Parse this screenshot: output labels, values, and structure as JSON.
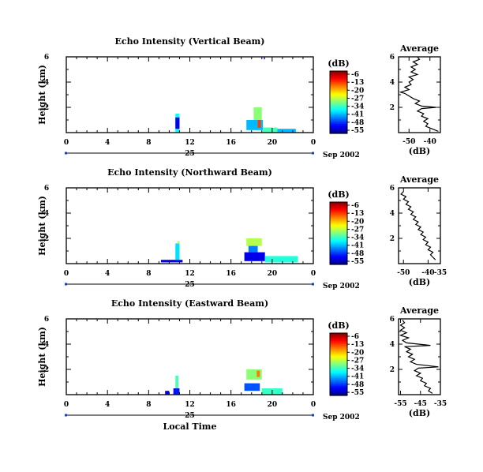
{
  "chart_data": [
    {
      "type": "heatmap",
      "title": "Echo Intensity (Vertical Beam)",
      "ylabel": "Height (km)",
      "ylim": [
        0,
        6
      ],
      "yticks": [
        "2",
        "4",
        "6"
      ],
      "xlim": [
        0,
        24
      ],
      "xticks": [
        "0",
        "4",
        "8",
        "12",
        "16",
        "20",
        "0"
      ],
      "date_day": "25",
      "date_label": "Sep 2002",
      "colorbar": {
        "unit": "(dB)",
        "ticks": [
          "-6",
          "-13",
          "-20",
          "-27",
          "-34",
          "-41",
          "-48",
          "-55"
        ]
      },
      "echo_cells": [
        {
          "t0": 10.6,
          "t1": 11.0,
          "h0": 0.0,
          "h1": 1.5,
          "db": -36
        },
        {
          "t0": 10.6,
          "t1": 11.0,
          "h0": 0.3,
          "h1": 1.2,
          "db": -50
        },
        {
          "t0": 17.5,
          "t1": 19.1,
          "h0": 0.2,
          "h1": 1.0,
          "db": -40
        },
        {
          "t0": 18.2,
          "t1": 19.0,
          "h0": 1.0,
          "h1": 2.0,
          "db": -30
        },
        {
          "t0": 18.6,
          "t1": 18.9,
          "h0": 0.4,
          "h1": 1.0,
          "db": -15
        },
        {
          "t0": 19.1,
          "t1": 20.5,
          "h0": 0.0,
          "h1": 0.4,
          "db": -33
        },
        {
          "t0": 20.5,
          "t1": 22.3,
          "h0": 0.0,
          "h1": 0.3,
          "db": -40
        },
        {
          "t0": 19.2,
          "t1": 19.3,
          "h0": 5.8,
          "h1": 6.0,
          "db": -50
        }
      ],
      "average": {
        "title": "Average",
        "xlabel": "(dB)",
        "xlim": [
          -55,
          -35
        ],
        "xticks": [
          {
            "v": -50,
            "label": "-50"
          },
          {
            "v": -40,
            "label": "-40"
          }
        ],
        "ylim": [
          0,
          6
        ],
        "yticks": [
          "2",
          "4",
          "6"
        ],
        "points": [
          [
            -36,
            0.1
          ],
          [
            -39,
            0.3
          ],
          [
            -42,
            0.5
          ],
          [
            -41,
            0.7
          ],
          [
            -43,
            0.9
          ],
          [
            -41,
            1.1
          ],
          [
            -44,
            1.3
          ],
          [
            -43,
            1.5
          ],
          [
            -46,
            1.7
          ],
          [
            -44,
            1.9
          ],
          [
            -37,
            2.0
          ],
          [
            -44,
            2.1
          ],
          [
            -47,
            2.3
          ],
          [
            -45,
            2.5
          ],
          [
            -48,
            2.7
          ],
          [
            -50,
            2.9
          ],
          [
            -52,
            3.1
          ],
          [
            -54,
            3.2
          ],
          [
            -50,
            3.4
          ],
          [
            -52,
            3.6
          ],
          [
            -49,
            3.8
          ],
          [
            -50,
            4.0
          ],
          [
            -48,
            4.2
          ],
          [
            -50,
            4.4
          ],
          [
            -46,
            4.6
          ],
          [
            -49,
            4.8
          ],
          [
            -47,
            5.0
          ],
          [
            -49,
            5.2
          ],
          [
            -46,
            5.4
          ],
          [
            -48,
            5.6
          ],
          [
            -45,
            5.8
          ],
          [
            -46,
            6.0
          ]
        ]
      }
    },
    {
      "type": "heatmap",
      "title": "Echo Intensity (Northward Beam)",
      "ylabel": "Height (km)",
      "ylim": [
        0,
        6
      ],
      "yticks": [
        "2",
        "4",
        "6"
      ],
      "xlim": [
        0,
        24
      ],
      "xticks": [
        "0",
        "4",
        "8",
        "12",
        "16",
        "20",
        "0"
      ],
      "date_day": "25",
      "date_label": "Sep 2002",
      "colorbar": {
        "unit": "(dB)",
        "ticks": [
          "-6",
          "-13",
          "-20",
          "-27",
          "-34",
          "-41",
          "-48",
          "-55"
        ]
      },
      "echo_cells": [
        {
          "t0": 9.2,
          "t1": 11.3,
          "h0": 0.1,
          "h1": 0.3,
          "db": -50
        },
        {
          "t0": 10.6,
          "t1": 11.0,
          "h0": 0.3,
          "h1": 1.6,
          "db": -38
        },
        {
          "t0": 10.8,
          "t1": 11.0,
          "h0": 1.6,
          "h1": 1.8,
          "db": -27
        },
        {
          "t0": 17.5,
          "t1": 19.0,
          "h0": 1.4,
          "h1": 2.0,
          "db": -28
        },
        {
          "t0": 17.7,
          "t1": 18.6,
          "h0": 0.9,
          "h1": 1.4,
          "db": -43
        },
        {
          "t0": 17.3,
          "t1": 19.3,
          "h0": 0.2,
          "h1": 0.9,
          "db": -50
        },
        {
          "t0": 19.3,
          "t1": 22.5,
          "h0": 0.1,
          "h1": 0.6,
          "db": -35
        }
      ],
      "average": {
        "title": "Average",
        "xlabel": "(dB)",
        "xlim": [
          -52,
          -35
        ],
        "xticks": [
          {
            "v": -50,
            "label": "-50"
          },
          {
            "v": -40,
            "label": "-40"
          },
          {
            "v": -35,
            "label": "-35"
          }
        ],
        "ylim": [
          0,
          6
        ],
        "yticks": [
          "2",
          "4",
          "6"
        ],
        "points": [
          [
            -37,
            0.3
          ],
          [
            -38,
            0.5
          ],
          [
            -39,
            0.7
          ],
          [
            -38,
            0.9
          ],
          [
            -40,
            1.1
          ],
          [
            -39,
            1.3
          ],
          [
            -41,
            1.5
          ],
          [
            -40,
            1.7
          ],
          [
            -42,
            1.9
          ],
          [
            -41,
            2.1
          ],
          [
            -43,
            2.3
          ],
          [
            -42,
            2.5
          ],
          [
            -44,
            2.7
          ],
          [
            -43,
            2.9
          ],
          [
            -45,
            3.1
          ],
          [
            -44,
            3.3
          ],
          [
            -46,
            3.5
          ],
          [
            -45,
            3.7
          ],
          [
            -47,
            3.9
          ],
          [
            -46,
            4.1
          ],
          [
            -48,
            4.3
          ],
          [
            -47,
            4.5
          ],
          [
            -49,
            4.7
          ],
          [
            -48,
            4.9
          ],
          [
            -50,
            5.1
          ],
          [
            -49,
            5.3
          ],
          [
            -51,
            5.5
          ],
          [
            -50,
            5.7
          ]
        ]
      }
    },
    {
      "type": "heatmap",
      "title": "Echo Intensity (Eastward Beam)",
      "ylabel": "Height (km)",
      "ylim": [
        0,
        6
      ],
      "yticks": [
        "2",
        "4",
        "6"
      ],
      "xlim": [
        0,
        24
      ],
      "xticks": [
        "0",
        "4",
        "8",
        "12",
        "16",
        "20",
        "0"
      ],
      "date_day": "25",
      "date_label": "Sep 2002",
      "xlabel": "Local Time",
      "colorbar": {
        "unit": "(dB)",
        "ticks": [
          "-6",
          "-13",
          "-20",
          "-27",
          "-34",
          "-41",
          "-48",
          "-55"
        ]
      },
      "echo_cells": [
        {
          "t0": 9.6,
          "t1": 10.0,
          "h0": 0.0,
          "h1": 0.3,
          "db": -50
        },
        {
          "t0": 10.4,
          "t1": 11.0,
          "h0": 0.0,
          "h1": 0.5,
          "db": -48
        },
        {
          "t0": 10.6,
          "t1": 10.9,
          "h0": 0.5,
          "h1": 1.5,
          "db": -33
        },
        {
          "t0": 17.5,
          "t1": 19.0,
          "h0": 1.2,
          "h1": 2.0,
          "db": -30
        },
        {
          "t0": 18.5,
          "t1": 18.8,
          "h0": 1.4,
          "h1": 1.9,
          "db": -18
        },
        {
          "t0": 17.3,
          "t1": 18.8,
          "h0": 0.3,
          "h1": 0.9,
          "db": -45
        },
        {
          "t0": 19.0,
          "t1": 21.0,
          "h0": 0.0,
          "h1": 0.5,
          "db": -34
        }
      ],
      "average": {
        "title": "Average",
        "xlabel": "(dB)",
        "xlim": [
          -56,
          -35
        ],
        "xticks": [
          {
            "v": -55,
            "label": "-55"
          },
          {
            "v": -45,
            "label": "-45"
          },
          {
            "v": -35,
            "label": "-35"
          }
        ],
        "ylim": [
          0,
          6
        ],
        "yticks": [
          "2",
          "4",
          "6"
        ],
        "points": [
          [
            -39,
            0.1
          ],
          [
            -41,
            0.3
          ],
          [
            -40,
            0.5
          ],
          [
            -43,
            0.7
          ],
          [
            -42,
            0.9
          ],
          [
            -45,
            1.1
          ],
          [
            -44,
            1.3
          ],
          [
            -47,
            1.5
          ],
          [
            -45,
            1.7
          ],
          [
            -48,
            1.9
          ],
          [
            -46,
            2.1
          ],
          [
            -36,
            2.2
          ],
          [
            -47,
            2.4
          ],
          [
            -50,
            2.6
          ],
          [
            -48,
            2.8
          ],
          [
            -51,
            3.0
          ],
          [
            -49,
            3.2
          ],
          [
            -52,
            3.4
          ],
          [
            -50,
            3.6
          ],
          [
            -53,
            3.8
          ],
          [
            -40,
            3.9
          ],
          [
            -52,
            4.1
          ],
          [
            -54,
            4.3
          ],
          [
            -51,
            4.5
          ],
          [
            -55,
            4.7
          ],
          [
            -52,
            4.9
          ],
          [
            -55,
            5.1
          ],
          [
            -53,
            5.3
          ],
          [
            -55,
            5.5
          ],
          [
            -53,
            5.7
          ],
          [
            -54,
            5.9
          ]
        ]
      }
    }
  ]
}
